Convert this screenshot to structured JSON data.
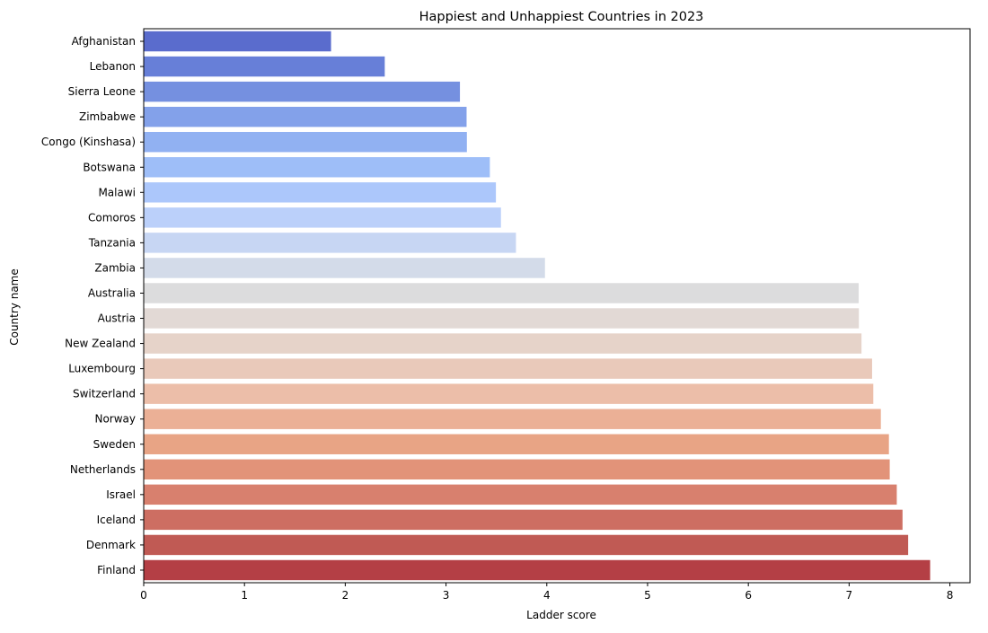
{
  "chart_data": {
    "type": "bar",
    "orientation": "horizontal",
    "title": "Happiest and Unhappiest Countries in 2023",
    "xlabel": "Ladder score",
    "ylabel": "Country name",
    "xlim": [
      0,
      8.2
    ],
    "xticks": [
      "0",
      "1",
      "2",
      "3",
      "4",
      "5",
      "6",
      "7",
      "8"
    ],
    "grid": false,
    "categories": [
      "Afghanistan",
      "Lebanon",
      "Sierra Leone",
      "Zimbabwe",
      "Congo (Kinshasa)",
      "Botswana",
      "Malawi",
      "Comoros",
      "Tanzania",
      "Zambia",
      "Australia",
      "Austria",
      "New Zealand",
      "Luxembourg",
      "Switzerland",
      "Norway",
      "Sweden",
      "Netherlands",
      "Israel",
      "Iceland",
      "Denmark",
      "Finland"
    ],
    "values": [
      1.859,
      2.392,
      3.138,
      3.204,
      3.207,
      3.435,
      3.495,
      3.545,
      3.694,
      3.982,
      7.095,
      7.097,
      7.123,
      7.228,
      7.24,
      7.315,
      7.395,
      7.403,
      7.473,
      7.53,
      7.586,
      7.804
    ],
    "colors": [
      "#5a6ccd",
      "#677fd8",
      "#7590e0",
      "#83a1ea",
      "#91b1f2",
      "#9ebef8",
      "#acc7fb",
      "#bbd0fa",
      "#c7d6f3",
      "#d3dbe9",
      "#dcdcdd",
      "#e2d9d5",
      "#e6d3c9",
      "#e9c9ba",
      "#ecbea9",
      "#ebb096",
      "#e8a485",
      "#e29379",
      "#d8806e",
      "#cd6e62",
      "#c05a54",
      "#b43f45"
    ]
  }
}
